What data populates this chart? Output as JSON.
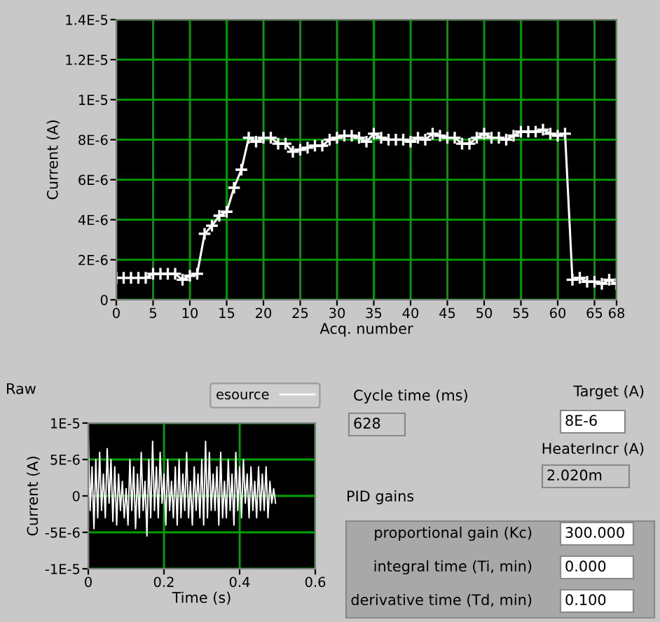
{
  "chart_data": [
    {
      "type": "line",
      "xlabel": "Acq. number",
      "ylabel": "Current (A)",
      "marker": "cross",
      "line_style": "solid",
      "grid": true,
      "x": [
        0,
        1,
        2,
        3,
        4,
        5,
        6,
        7,
        8,
        9,
        10,
        11,
        12,
        13,
        14,
        15,
        16,
        17,
        18,
        19,
        20,
        21,
        22,
        23,
        24,
        25,
        26,
        27,
        28,
        29,
        30,
        31,
        32,
        33,
        34,
        35,
        36,
        37,
        38,
        39,
        40,
        41,
        42,
        43,
        44,
        45,
        46,
        47,
        48,
        49,
        50,
        51,
        52,
        53,
        54,
        55,
        56,
        57,
        58,
        59,
        60,
        61,
        62,
        63,
        64,
        65,
        66,
        67,
        68
      ],
      "series": [
        {
          "color": "#ffffff",
          "values": [
            1.1e-06,
            1.1e-06,
            1.1e-06,
            1.1e-06,
            1.1e-06,
            1.3e-06,
            1.3e-06,
            1.3e-06,
            1.3e-06,
            1e-06,
            1.2e-06,
            1.3e-06,
            3.3e-06,
            3.7e-06,
            4.2e-06,
            4.4e-06,
            5.6e-06,
            6.5e-06,
            8.1e-06,
            7.9e-06,
            8.1e-06,
            8.1e-06,
            7.8e-06,
            7.8e-06,
            7.4e-06,
            7.5e-06,
            7.6e-06,
            7.7e-06,
            7.7e-06,
            8e-06,
            8.1e-06,
            8.2e-06,
            8.2e-06,
            8.1e-06,
            7.9e-06,
            8.3e-06,
            8.1e-06,
            8e-06,
            8e-06,
            8e-06,
            7.9e-06,
            8.1e-06,
            8e-06,
            8.3e-06,
            8.2e-06,
            8.1e-06,
            8.1e-06,
            7.8e-06,
            7.8e-06,
            8.1e-06,
            8.3e-06,
            8.1e-06,
            8.1e-06,
            8e-06,
            8.2e-06,
            8.4e-06,
            8.4e-06,
            8.4e-06,
            8.5e-06,
            8.3e-06,
            8.2e-06,
            8.3e-06,
            1e-06,
            1.1e-06,
            9e-07,
            9e-07,
            8e-07,
            1e-06,
            8e-07
          ]
        }
      ],
      "xlim": [
        0,
        68
      ],
      "xticks": [
        0,
        5,
        10,
        15,
        20,
        25,
        30,
        35,
        40,
        45,
        50,
        55,
        60,
        65,
        68
      ],
      "ylim": [
        0,
        1.4e-05
      ],
      "yticks": [
        {
          "value": 0,
          "label": "0"
        },
        {
          "value": 2e-06,
          "label": "2E-6"
        },
        {
          "value": 4e-06,
          "label": "4E-6"
        },
        {
          "value": 6e-06,
          "label": "6E-6"
        },
        {
          "value": 8e-06,
          "label": "8E-6"
        },
        {
          "value": 1e-05,
          "label": "1E-5"
        },
        {
          "value": 1.2e-05,
          "label": "1.2E-5"
        },
        {
          "value": 1.4e-05,
          "label": "1.4E-5"
        }
      ]
    },
    {
      "type": "line",
      "title": "Raw",
      "xlabel": "Time (s)",
      "ylabel": "Current (A)",
      "grid": true,
      "legend": "top right",
      "line_style": "solid",
      "x": [
        0,
        0.005,
        0.01,
        0.015,
        0.02,
        0.025,
        0.03,
        0.035,
        0.04,
        0.045,
        0.05,
        0.055,
        0.06,
        0.065,
        0.07,
        0.075,
        0.08,
        0.085,
        0.09,
        0.095,
        0.1,
        0.105,
        0.11,
        0.115,
        0.12,
        0.125,
        0.13,
        0.135,
        0.14,
        0.145,
        0.15,
        0.155,
        0.16,
        0.165,
        0.17,
        0.175,
        0.18,
        0.185,
        0.19,
        0.195,
        0.2,
        0.205,
        0.21,
        0.215,
        0.22,
        0.225,
        0.23,
        0.235,
        0.24,
        0.245,
        0.25,
        0.255,
        0.26,
        0.265,
        0.27,
        0.275,
        0.28,
        0.285,
        0.29,
        0.295,
        0.3,
        0.305,
        0.31,
        0.315,
        0.32,
        0.325,
        0.33,
        0.335,
        0.34,
        0.345,
        0.35,
        0.355,
        0.36,
        0.365,
        0.37,
        0.375,
        0.38,
        0.385,
        0.39,
        0.395,
        0.4,
        0.405,
        0.41,
        0.415,
        0.42,
        0.425,
        0.43,
        0.435,
        0.44,
        0.445,
        0.45,
        0.455,
        0.46,
        0.465,
        0.47,
        0.475,
        0.48,
        0.485,
        0.49,
        0.495
      ],
      "series": [
        {
          "name": "esource",
          "color": "#ffffff",
          "values": [
            8.5e-06,
            -2e-06,
            4e-06,
            -4.5e-06,
            5e-06,
            -3e-06,
            6e-06,
            -2e-06,
            3e-06,
            -3e-06,
            6.5e-06,
            -1e-06,
            5e-06,
            -3.5e-06,
            4e-06,
            -4e-06,
            3e-06,
            -2e-06,
            2e-06,
            -3e-06,
            1e-06,
            -4e-06,
            5e-06,
            -2e-06,
            4e-06,
            -4.5e-06,
            3e-06,
            -3e-06,
            6e-06,
            -2e-06,
            2e-06,
            -5.5e-06,
            5e-06,
            -3e-06,
            7.5e-06,
            -2e-06,
            4e-06,
            -3e-06,
            6e-06,
            -1e-06,
            3e-06,
            -4e-06,
            5e-06,
            -2e-06,
            2e-06,
            -3e-06,
            4e-06,
            -4e-06,
            5e-06,
            -3e-06,
            3e-06,
            -2e-06,
            6e-06,
            -3e-06,
            2e-06,
            -4e-06,
            4e-06,
            -2e-06,
            3e-06,
            -3e-06,
            5e-06,
            -4e-06,
            7.5e-06,
            -3e-06,
            6e-06,
            -2e-06,
            3e-06,
            -2e-06,
            4e-06,
            -4e-06,
            6e-06,
            -3e-06,
            2e-06,
            -3e-06,
            5e-06,
            -2e-06,
            3e-06,
            -4e-06,
            6e-06,
            -2e-06,
            4e-06,
            -3e-06,
            5e-06,
            -1e-06,
            3e-06,
            -3e-06,
            4e-06,
            -2e-06,
            2e-06,
            -3e-06,
            4e-06,
            -2e-06,
            3e-06,
            -2e-06,
            4e-06,
            -3e-06,
            2e-06,
            -1e-06,
            1e-06,
            -1e-06
          ]
        }
      ],
      "xlim": [
        0,
        0.6
      ],
      "xticks": [
        0,
        0.2,
        0.4,
        0.6
      ],
      "ylim": [
        -1e-05,
        1e-05
      ],
      "yticks": [
        {
          "value": -1e-05,
          "label": "-1E-5"
        },
        {
          "value": -5e-06,
          "label": "-5E-6"
        },
        {
          "value": 0,
          "label": "0"
        },
        {
          "value": 5e-06,
          "label": "5E-6"
        },
        {
          "value": 1e-05,
          "label": "1E-5"
        }
      ]
    },
    {
      "type": "other",
      "annotations": [
        "Cycle time (ms)",
        "628",
        "Target (A)",
        "8E-6",
        "HeaterIncr (A)",
        "2.020m",
        "PID gains",
        "proportional gain (Kc)",
        "300.000",
        "integral time (Ti, min)",
        "0.000",
        "derivative time (Td, min)",
        "0.100"
      ]
    }
  ]
}
